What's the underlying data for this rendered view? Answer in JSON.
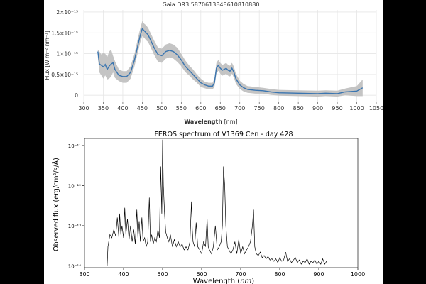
{
  "colors": {
    "background": "#000000",
    "panel": "#ffffff",
    "line_top": "#3a75b0",
    "band_top": "#c4c4c4",
    "grid_top": "#e6e6e6",
    "line_bottom": "#000000"
  },
  "chart_data": [
    {
      "type": "line",
      "title": "Gaia DR3 5870613848610810880",
      "xlabel": "Wavelength",
      "xlabel_unit": "[nm]",
      "ylabel": "Flux [W m⁻² nm⁻¹]",
      "xlim": [
        300,
        1050
      ],
      "ylim": [
        -1.5e-16,
        2.05e-15
      ],
      "grid": true,
      "x_ticks": [
        300,
        350,
        400,
        450,
        500,
        550,
        600,
        650,
        700,
        750,
        800,
        850,
        900,
        950,
        1000,
        1050
      ],
      "y_ticks": [
        0,
        5e-16,
        1e-15,
        1.5e-15,
        2e-15
      ],
      "y_tick_labels": [
        "0",
        "0.5×10⁻¹⁵",
        "1×10⁻¹⁵",
        "1.5×10⁻¹⁵",
        "2×10⁻¹⁵"
      ],
      "series": [
        {
          "name": "flux",
          "x": [
            336,
            340,
            345,
            350,
            355,
            360,
            365,
            370,
            375,
            380,
            390,
            400,
            410,
            420,
            430,
            440,
            445,
            450,
            455,
            460,
            465,
            470,
            480,
            490,
            500,
            510,
            520,
            530,
            540,
            550,
            560,
            570,
            580,
            590,
            600,
            610,
            620,
            630,
            635,
            640,
            645,
            650,
            655,
            660,
            665,
            670,
            675,
            680,
            685,
            690,
            700,
            710,
            720,
            740,
            760,
            780,
            800,
            850,
            900,
            920,
            950,
            970,
            1000,
            1015
          ],
          "y": [
            1.05e-15,
            7.5e-16,
            7.2e-16,
            6.8e-16,
            7.4e-16,
            6.2e-16,
            7e-16,
            7.5e-16,
            7.8e-16,
            6.2e-16,
            4.8e-16,
            4.5e-16,
            4.5e-16,
            5.5e-16,
            8.5e-16,
            1.25e-15,
            1.45e-15,
            1.6e-15,
            1.55e-15,
            1.5e-15,
            1.45e-15,
            1.35e-15,
            1.15e-15,
            9.8e-16,
            9.5e-16,
            1.05e-15,
            1.08e-15,
            1.05e-15,
            9.7e-16,
            8.5e-16,
            7e-16,
            6e-16,
            5e-16,
            4e-16,
            3e-16,
            2.5e-16,
            2.2e-16,
            2.2e-16,
            3e-16,
            6.5e-16,
            7.2e-16,
            6.5e-16,
            6e-16,
            6.2e-16,
            6.5e-16,
            6e-16,
            5.8e-16,
            6.5e-16,
            5.5e-16,
            4e-16,
            2.5e-16,
            1.8e-16,
            1.4e-16,
            1.2e-16,
            1.1e-16,
            8e-17,
            6e-17,
            5e-17,
            4e-17,
            5e-17,
            4e-17,
            8e-17,
            1e-16,
            1.8e-16
          ],
          "y_upper": [
            1.1e-15,
            1.05e-15,
            9.8e-16,
            1.02e-15,
            1e-15,
            9.2e-16,
            1.05e-15,
            1.1e-15,
            9.5e-16,
            8.2e-16,
            6.2e-16,
            5.8e-16,
            5.8e-16,
            7e-16,
            1e-15,
            1.42e-15,
            1.62e-15,
            1.78e-15,
            1.72e-15,
            1.68e-15,
            1.62e-15,
            1.52e-15,
            1.32e-15,
            1.15e-15,
            1.12e-15,
            1.22e-15,
            1.25e-15,
            1.22e-15,
            1.14e-15,
            1e-15,
            8.4e-16,
            7.2e-16,
            6.2e-16,
            5e-16,
            4e-16,
            3.3e-16,
            3e-16,
            3e-16,
            4e-16,
            7.8e-16,
            8.5e-16,
            7.8e-16,
            7.3e-16,
            7.5e-16,
            7.8e-16,
            7.3e-16,
            7.1e-16,
            7.8e-16,
            6.8e-16,
            5.2e-16,
            3.5e-16,
            2.7e-16,
            2.2e-16,
            2e-16,
            1.8e-16,
            1.5e-16,
            1.3e-16,
            1.2e-16,
            1.1e-16,
            1.2e-16,
            1.1e-16,
            1.6e-16,
            2.2e-16,
            3.8e-16
          ],
          "y_lower": [
            9.2e-16,
            5.5e-16,
            4.8e-16,
            4e-16,
            4.8e-16,
            3.8e-16,
            4e-16,
            4.5e-16,
            5.5e-16,
            4.2e-16,
            3.4e-16,
            3e-16,
            3e-16,
            4e-16,
            7e-16,
            1.08e-15,
            1.28e-15,
            1.42e-15,
            1.38e-15,
            1.32e-15,
            1.28e-15,
            1.18e-15,
            9.8e-16,
            8.1e-16,
            7.8e-16,
            8.8e-16,
            9.1e-16,
            8.8e-16,
            8e-16,
            7e-16,
            5.6e-16,
            4.8e-16,
            3.8e-16,
            3e-16,
            2e-16,
            1.7e-16,
            1.4e-16,
            1.4e-16,
            2e-16,
            5.2e-16,
            5.9e-16,
            5.2e-16,
            4.7e-16,
            4.9e-16,
            5.2e-16,
            4.7e-16,
            4.5e-16,
            5.2e-16,
            4.2e-16,
            2.8e-16,
            1.5e-16,
            9e-17,
            6e-17,
            4e-17,
            4e-17,
            1e-17,
            -1e-17,
            -2e-17,
            -3e-17,
            -2e-17,
            -3e-17,
            0.0,
            -2e-17,
            -2e-17
          ]
        }
      ]
    },
    {
      "type": "line",
      "title": "FEROS spectrum of V1369 Cen - day 428",
      "xlabel": "Wavelength",
      "xlabel_unit": "nm",
      "ylabel": "Observed flux (erg/cm²/s/Å)",
      "xlim": [
        300,
        1000
      ],
      "ylim": [
        9e-15,
        1.5e-11
      ],
      "y_scale": "log",
      "x_ticks": [
        300,
        400,
        500,
        600,
        700,
        800,
        900,
        1000
      ],
      "y_ticks": [
        1e-14,
        1e-13,
        1e-12,
        1e-11
      ],
      "y_tick_labels": [
        "10⁻¹⁴",
        "10⁻¹³",
        "10⁻¹²",
        "10⁻¹¹"
      ],
      "series": [
        {
          "name": "FEROS flux",
          "x": [
            358,
            360,
            365,
            370,
            375,
            380,
            384,
            388,
            390,
            393,
            396,
            400,
            403,
            406,
            410,
            414,
            418,
            422,
            426,
            430,
            434,
            437,
            440,
            443,
            447,
            450,
            454,
            458,
            462,
            466,
            469,
            472,
            476,
            480,
            484,
            488,
            492,
            495,
            498,
            500,
            502,
            505,
            508,
            512,
            516,
            520,
            525,
            530,
            535,
            540,
            545,
            550,
            555,
            560,
            565,
            570,
            574,
            576,
            578,
            582,
            586,
            590,
            595,
            600,
            605,
            610,
            614,
            617,
            620,
            625,
            630,
            635,
            640,
            645,
            650,
            653,
            656,
            659,
            662,
            666,
            670,
            675,
            680,
            685,
            690,
            695,
            700,
            705,
            710,
            715,
            720,
            725,
            730,
            733,
            736,
            740,
            745,
            750,
            755,
            760,
            765,
            770,
            775,
            780,
            785,
            790,
            795,
            800,
            805,
            810,
            815,
            820,
            825,
            830,
            835,
            840,
            845,
            850,
            855,
            860,
            865,
            870,
            875,
            880,
            885,
            890,
            895,
            900,
            905,
            910,
            915,
            920
          ],
          "y": [
            1e-14,
            3e-14,
            6e-14,
            5e-14,
            8e-14,
            5.5e-14,
            1.6e-13,
            5e-14,
            2e-13,
            6e-14,
            1e-13,
            5e-14,
            2.8e-13,
            6e-14,
            1.5e-13,
            4.5e-14,
            1e-13,
            4e-14,
            8e-14,
            3.5e-14,
            2.5e-13,
            5e-14,
            1.3e-13,
            4e-14,
            1.6e-13,
            4e-14,
            5e-14,
            3e-14,
            4e-14,
            5e-13,
            4e-14,
            6e-14,
            3.5e-14,
            5e-14,
            4e-14,
            8e-14,
            5e-14,
            3e-12,
            2e-13,
            1.4e-11,
            1e-12,
            2e-13,
            7e-14,
            5e-14,
            4e-14,
            6e-14,
            3e-14,
            4.5e-14,
            3e-14,
            4e-14,
            3e-14,
            3.5e-14,
            2.5e-14,
            3e-14,
            2.5e-14,
            4e-14,
            4e-13,
            8e-14,
            4e-14,
            3e-14,
            1.2e-13,
            3e-14,
            2.5e-14,
            2e-14,
            4e-14,
            3e-14,
            1.5e-13,
            3e-14,
            2.5e-14,
            2e-14,
            3e-14,
            1e-13,
            2.5e-14,
            3e-14,
            4e-14,
            1e-13,
            3e-12,
            1e-12,
            1e-13,
            3e-14,
            2.5e-14,
            2e-14,
            2.5e-14,
            4e-14,
            2e-14,
            4.5e-14,
            2e-14,
            3e-14,
            2e-14,
            2.5e-14,
            3e-14,
            4e-14,
            1e-13,
            2.5e-13,
            3e-14,
            2e-14,
            1.8e-14,
            2.2e-14,
            1.6e-14,
            1.8e-14,
            1.5e-14,
            1.7e-14,
            1.4e-14,
            1.5e-14,
            1.3e-14,
            1.5e-14,
            1.2e-14,
            1.6e-14,
            1.3e-14,
            1.4e-14,
            2.2e-14,
            1.3e-14,
            1.5e-14,
            1.2e-14,
            1.4e-14,
            1.6e-14,
            1.2e-14,
            1.4e-14,
            1.1e-14,
            1.3e-14,
            1.2e-14,
            1.5e-14,
            1.1e-14,
            1.3e-14,
            1.2e-14,
            1.4e-14,
            1.1e-14,
            1.3e-14,
            1.1e-14,
            1.5e-14,
            1.1e-14,
            1.3e-14
          ]
        }
      ]
    }
  ]
}
